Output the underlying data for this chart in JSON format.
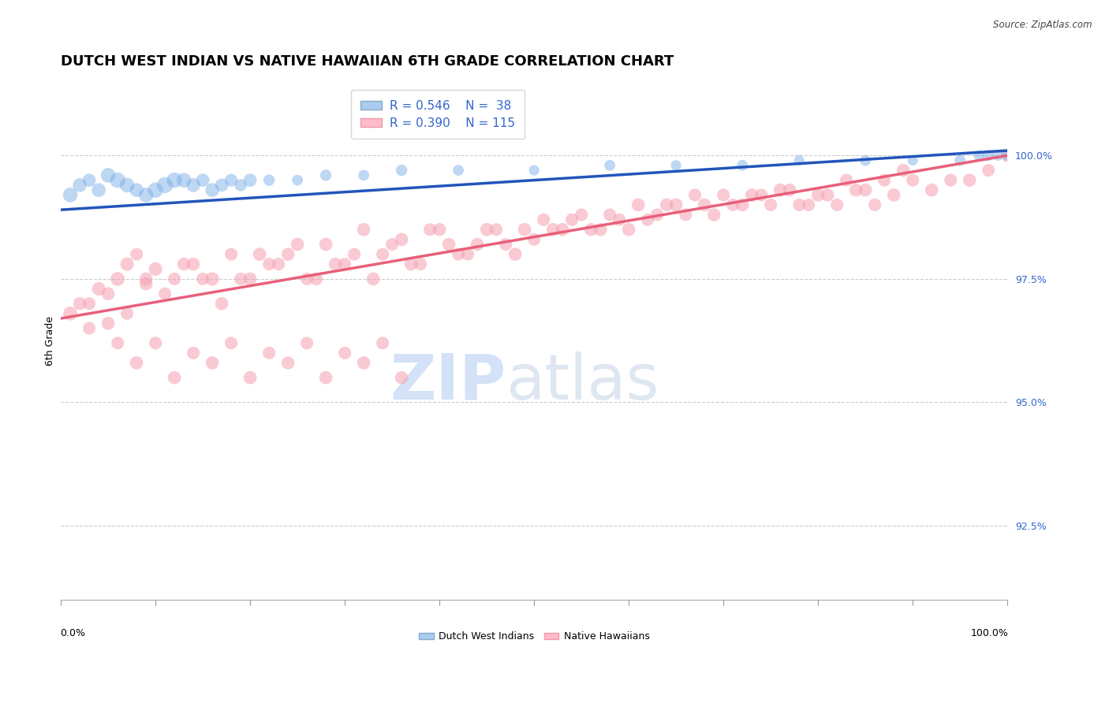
{
  "title": "DUTCH WEST INDIAN VS NATIVE HAWAIIAN 6TH GRADE CORRELATION CHART",
  "source": "Source: ZipAtlas.com",
  "ylabel": "6th Grade",
  "y_tick_labels": [
    "92.5%",
    "95.0%",
    "97.5%",
    "100.0%"
  ],
  "y_tick_values": [
    92.5,
    95.0,
    97.5,
    100.0
  ],
  "xlim": [
    0,
    100
  ],
  "ylim": [
    91.0,
    101.5
  ],
  "legend_blue_R": "R = 0.546",
  "legend_blue_N": "N =  38",
  "legend_pink_R": "R = 0.390",
  "legend_pink_N": "N = 115",
  "blue_color": "#7EB1E8",
  "pink_color": "#F5A0B0",
  "blue_line_color": "#2255BB",
  "pink_line_color": "#E8607A",
  "blue_scatter_x": [
    1,
    2,
    3,
    4,
    5,
    6,
    7,
    8,
    9,
    10,
    11,
    12,
    13,
    14,
    15,
    16,
    17,
    18,
    19,
    20,
    22,
    25,
    28,
    32,
    36,
    42,
    50,
    58,
    65,
    72,
    78,
    85,
    90,
    95,
    97,
    98,
    99,
    100
  ],
  "blue_scatter_y": [
    99.2,
    99.4,
    99.5,
    99.3,
    99.6,
    99.5,
    99.4,
    99.3,
    99.2,
    99.3,
    99.4,
    99.5,
    99.5,
    99.4,
    99.5,
    99.3,
    99.4,
    99.5,
    99.4,
    99.5,
    99.5,
    99.5,
    99.6,
    99.6,
    99.7,
    99.7,
    99.7,
    99.8,
    99.8,
    99.8,
    99.9,
    99.9,
    99.9,
    99.9,
    100.0,
    100.0,
    100.0,
    100.0
  ],
  "blue_scatter_sizes": [
    200,
    180,
    160,
    180,
    200,
    220,
    200,
    180,
    200,
    220,
    240,
    220,
    200,
    180,
    160,
    180,
    160,
    150,
    140,
    160,
    120,
    110,
    120,
    110,
    120,
    110,
    100,
    110,
    100,
    110,
    100,
    110,
    100,
    110,
    100,
    110,
    100,
    110
  ],
  "pink_scatter_x": [
    1,
    2,
    3,
    4,
    5,
    6,
    7,
    8,
    9,
    10,
    12,
    14,
    16,
    18,
    20,
    22,
    24,
    26,
    28,
    30,
    32,
    34,
    36,
    38,
    40,
    42,
    44,
    46,
    48,
    50,
    52,
    54,
    56,
    58,
    60,
    62,
    64,
    66,
    68,
    70,
    72,
    74,
    76,
    78,
    80,
    82,
    84,
    86,
    88,
    90,
    92,
    94,
    96,
    98,
    100,
    3,
    5,
    7,
    9,
    11,
    13,
    15,
    17,
    19,
    21,
    23,
    25,
    27,
    29,
    31,
    33,
    35,
    37,
    39,
    41,
    43,
    45,
    47,
    49,
    51,
    53,
    55,
    57,
    59,
    61,
    63,
    65,
    67,
    69,
    71,
    73,
    75,
    77,
    79,
    81,
    83,
    85,
    87,
    89,
    6,
    8,
    10,
    12,
    14,
    16,
    18,
    20,
    22,
    24,
    26,
    28,
    30,
    32,
    34,
    36
  ],
  "pink_scatter_y": [
    96.8,
    97.0,
    96.5,
    97.3,
    96.6,
    97.5,
    97.8,
    98.0,
    97.4,
    97.7,
    97.5,
    97.8,
    97.5,
    98.0,
    97.5,
    97.8,
    98.0,
    97.5,
    98.2,
    97.8,
    98.5,
    98.0,
    98.3,
    97.8,
    98.5,
    98.0,
    98.2,
    98.5,
    98.0,
    98.3,
    98.5,
    98.7,
    98.5,
    98.8,
    98.5,
    98.7,
    99.0,
    98.8,
    99.0,
    99.2,
    99.0,
    99.2,
    99.3,
    99.0,
    99.2,
    99.0,
    99.3,
    99.0,
    99.2,
    99.5,
    99.3,
    99.5,
    99.5,
    99.7,
    100.0,
    97.0,
    97.2,
    96.8,
    97.5,
    97.2,
    97.8,
    97.5,
    97.0,
    97.5,
    98.0,
    97.8,
    98.2,
    97.5,
    97.8,
    98.0,
    97.5,
    98.2,
    97.8,
    98.5,
    98.2,
    98.0,
    98.5,
    98.2,
    98.5,
    98.7,
    98.5,
    98.8,
    98.5,
    98.7,
    99.0,
    98.8,
    99.0,
    99.2,
    98.8,
    99.0,
    99.2,
    99.0,
    99.3,
    99.0,
    99.2,
    99.5,
    99.3,
    99.5,
    99.7,
    96.2,
    95.8,
    96.2,
    95.5,
    96.0,
    95.8,
    96.2,
    95.5,
    96.0,
    95.8,
    96.2,
    95.5,
    96.0,
    95.8,
    96.2,
    95.5
  ],
  "pink_scatter_sizes": [
    180,
    160,
    150,
    170,
    160,
    180,
    170,
    150,
    160,
    170,
    150,
    160,
    170,
    150,
    160,
    150,
    160,
    150,
    160,
    150,
    160,
    150,
    160,
    150,
    160,
    150,
    160,
    150,
    160,
    150,
    160,
    150,
    160,
    150,
    160,
    150,
    160,
    150,
    160,
    150,
    160,
    150,
    160,
    150,
    160,
    150,
    160,
    150,
    160,
    150,
    160,
    150,
    160,
    150,
    160,
    150,
    160,
    150,
    160,
    150,
    160,
    150,
    160,
    150,
    160,
    150,
    160,
    150,
    160,
    150,
    160,
    150,
    160,
    150,
    160,
    150,
    160,
    150,
    160,
    150,
    160,
    150,
    160,
    150,
    160,
    150,
    160,
    150,
    160,
    150,
    160,
    150,
    160,
    150,
    160,
    150,
    160,
    150,
    160,
    150,
    160,
    150,
    160,
    150,
    160,
    150,
    160,
    150,
    160,
    150,
    160,
    150,
    160,
    150,
    160
  ],
  "blue_trend_x": [
    0,
    100
  ],
  "blue_trend_y": [
    98.9,
    100.1
  ],
  "pink_trend_x": [
    0,
    100
  ],
  "pink_trend_y": [
    96.7,
    100.0
  ],
  "grid_color": "#CCCCCC",
  "bg_color": "#FFFFFF",
  "title_fontsize": 13,
  "axis_label_fontsize": 9,
  "tick_fontsize": 9,
  "legend_fontsize": 11
}
